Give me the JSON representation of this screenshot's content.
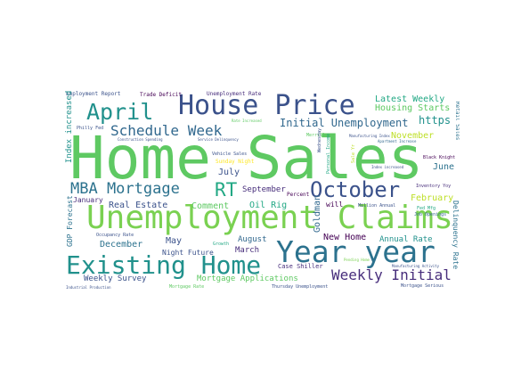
{
  "words": [
    {
      "text": "Home Sales",
      "color": "#5ec962"
    },
    {
      "text": "Unemployment Claims",
      "color": "#7ad151"
    },
    {
      "text": "Existing Home",
      "color": "#21918c"
    },
    {
      "text": "Year year",
      "color": "#2c728e"
    },
    {
      "text": "House Price",
      "color": "#3b528b"
    },
    {
      "text": "April",
      "color": "#21918c"
    },
    {
      "text": "Schedule Week",
      "color": "#31688e"
    },
    {
      "text": "MBA Mortgage",
      "color": "#2c728e"
    },
    {
      "text": "October",
      "color": "#3b528b"
    },
    {
      "text": "RT",
      "color": "#22a884"
    },
    {
      "text": "Weekly Initial",
      "color": "#472d7b"
    },
    {
      "text": "Initial Unemployment",
      "color": "#31688e"
    },
    {
      "text": "New Home",
      "color": "#440154"
    },
    {
      "text": "Latest Weekly",
      "color": "#22a884"
    },
    {
      "text": "Housing Starts",
      "color": "#5ec962"
    },
    {
      "text": "https",
      "color": "#21918c"
    },
    {
      "text": "November",
      "color": "#bddf26"
    },
    {
      "text": "June",
      "color": "#2c728e"
    },
    {
      "text": "February",
      "color": "#bddf26"
    },
    {
      "text": "Real Estate",
      "color": "#3b528b"
    },
    {
      "text": "Comment",
      "color": "#5ec962"
    },
    {
      "text": "Oil Rig",
      "color": "#22a884"
    },
    {
      "text": "July",
      "color": "#3b528b"
    },
    {
      "text": "September",
      "color": "#472d7b"
    },
    {
      "text": "December",
      "color": "#2c728e"
    },
    {
      "text": "May",
      "color": "#3b528b"
    },
    {
      "text": "August",
      "color": "#31688e"
    },
    {
      "text": "March",
      "color": "#472d7b"
    },
    {
      "text": "Annual Rate",
      "color": "#21918c"
    },
    {
      "text": "Night Future",
      "color": "#3b528b"
    },
    {
      "text": "Weekly Survey",
      "color": "#3b528b"
    },
    {
      "text": "Mortgage Applications",
      "color": "#5ec962"
    },
    {
      "text": "Goldman",
      "color": "#31688e"
    },
    {
      "text": "January",
      "color": "#472d7b"
    },
    {
      "text": "Employment Report",
      "color": "#3b528b"
    },
    {
      "text": "Trade Deficit",
      "color": "#440154"
    },
    {
      "text": "Unemployment Rate",
      "color": "#472d7b"
    },
    {
      "text": "Index increased",
      "color": "#21918c"
    },
    {
      "text": "GDP Forecast",
      "color": "#2c728e"
    },
    {
      "text": "Delinquency Rate",
      "color": "#2c728e"
    },
    {
      "text": "Sunday Night",
      "color": "#fde725"
    },
    {
      "text": "Vehicle Sales",
      "color": "#3b528b"
    },
    {
      "text": "Case Shiller",
      "color": "#472d7b"
    },
    {
      "text": "Thursday Unemployment",
      "color": "#3b528b"
    },
    {
      "text": "Mortgage Serious",
      "color": "#3b528b"
    },
    {
      "text": "Inventory Yoy",
      "color": "#472d7b"
    },
    {
      "text": "Black Knight",
      "color": "#440154"
    },
    {
      "text": "Job Openings",
      "color": "#31688e"
    },
    {
      "text": "Fed Mfg",
      "color": "#22a884"
    },
    {
      "text": "Million Annual",
      "color": "#3b528b"
    },
    {
      "text": "Mortgage Rate",
      "color": "#5ec962"
    },
    {
      "text": "Occupancy Rate",
      "color": "#3b528b"
    },
    {
      "text": "Philly Fed",
      "color": "#3b528b"
    },
    {
      "text": "Retail Sales",
      "color": "#2c728e"
    },
    {
      "text": "Industrial Production",
      "color": "#3b528b"
    },
    {
      "text": "will",
      "color": "#440154"
    },
    {
      "text": "Percent",
      "color": "#440154"
    },
    {
      "text": "Growth",
      "color": "#22a884"
    },
    {
      "text": "Merrill",
      "color": "#5ec962"
    },
    {
      "text": "Personal Income",
      "color": "#22a884"
    },
    {
      "text": "Sale Yr",
      "color": "#bddf26"
    },
    {
      "text": "Construction Spending",
      "color": "#3b528b"
    },
    {
      "text": "Service Delinquency",
      "color": "#3b528b"
    },
    {
      "text": "Manufacturing Index",
      "color": "#3b528b"
    },
    {
      "text": "Apartment Increase",
      "color": "#31688e"
    },
    {
      "text": "Index increased",
      "color": "#3b528b"
    },
    {
      "text": "Pending Home",
      "color": "#7ad151"
    },
    {
      "text": "Manufacturing Activity",
      "color": "#3b528b"
    },
    {
      "text": "Wednesday",
      "color": "#3b528b"
    },
    {
      "text": "Rate Increased",
      "color": "#5ec962"
    }
  ]
}
